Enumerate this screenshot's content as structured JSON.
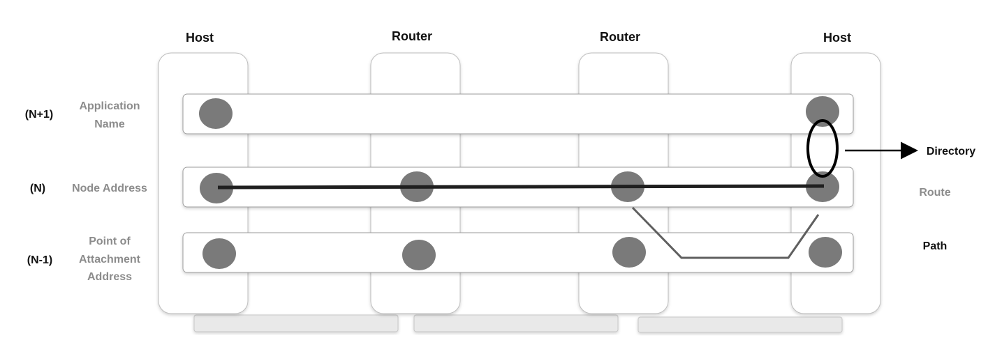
{
  "nodes": [
    {
      "title": "Host"
    },
    {
      "title": "Router"
    },
    {
      "title": "Router"
    },
    {
      "title": "Host"
    }
  ],
  "layers": [
    {
      "level": "(N+1)",
      "label_lines": [
        "Application",
        "Name"
      ]
    },
    {
      "level": "(N)",
      "label_lines": [
        "Node Address"
      ]
    },
    {
      "level": "(N-1)",
      "label_lines": [
        "Point of",
        "Attachment",
        "Address"
      ]
    }
  ],
  "right_labels": {
    "directory": "Directory",
    "route": "Route",
    "path": "Path"
  },
  "colors": {
    "node_fill": "#ffffff",
    "node_stroke": "#bdbdbd",
    "layer_stroke": "#9e9e9e",
    "dot_fill": "#7a7a7a",
    "route_line": "#1f1f1f",
    "path_line": "#5f5f5f",
    "link_fill": "#e9e9e9",
    "directory_ring": "#000000"
  }
}
